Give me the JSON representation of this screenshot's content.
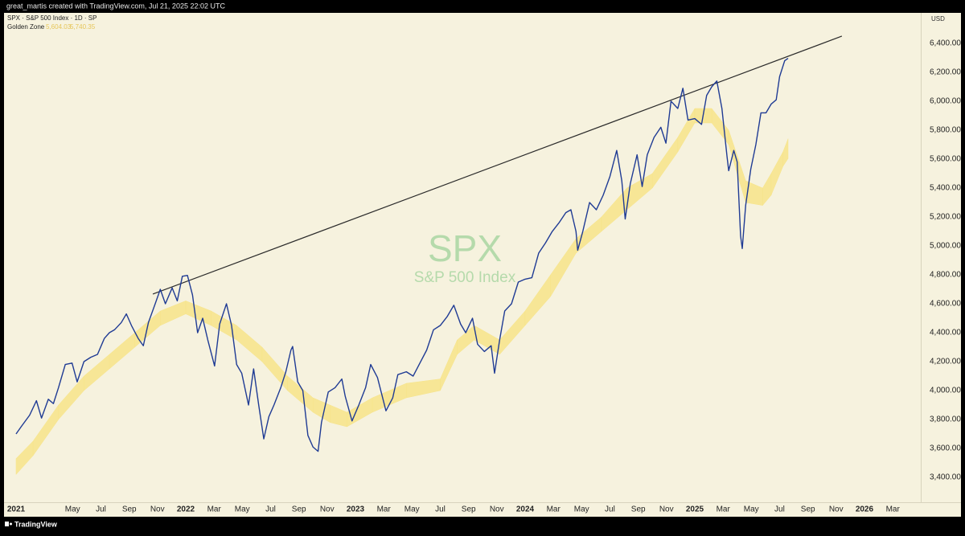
{
  "header": "great_martis created with TradingView.com, Jul 21, 2025 22:02 UTC",
  "footer": "TradingView",
  "chart_data": {
    "type": "line",
    "currency": "USD",
    "watermark": {
      "symbol": "SPX",
      "description": "S&P 500 Index"
    },
    "xlim": [
      2020.929,
      2026.332
    ],
    "ylim": [
      3228,
      6611
    ],
    "xticks": [
      2021,
      {
        "value": 2021.333,
        "label": "May"
      },
      {
        "value": 2021.5,
        "label": "Jul"
      },
      {
        "value": 2021.667,
        "label": "Sep"
      },
      {
        "value": 2021.833,
        "label": "Nov"
      },
      2022,
      {
        "value": 2022.167,
        "label": "Mar"
      },
      {
        "value": 2022.333,
        "label": "May"
      },
      {
        "value": 2022.5,
        "label": "Jul"
      },
      {
        "value": 2022.667,
        "label": "Sep"
      },
      {
        "value": 2022.833,
        "label": "Nov"
      },
      2023,
      {
        "value": 2023.167,
        "label": "Mar"
      },
      {
        "value": 2023.333,
        "label": "May"
      },
      {
        "value": 2023.5,
        "label": "Jul"
      },
      {
        "value": 2023.667,
        "label": "Sep"
      },
      {
        "value": 2023.833,
        "label": "Nov"
      },
      2024,
      {
        "value": 2024.167,
        "label": "Mar"
      },
      {
        "value": 2024.333,
        "label": "May"
      },
      {
        "value": 2024.5,
        "label": "Jul"
      },
      {
        "value": 2024.667,
        "label": "Sep"
      },
      {
        "value": 2024.833,
        "label": "Nov"
      },
      2025,
      {
        "value": 2025.167,
        "label": "Mar"
      },
      {
        "value": 2025.333,
        "label": "May"
      },
      {
        "value": 2025.5,
        "label": "Jul"
      },
      {
        "value": 2025.667,
        "label": "Sep"
      },
      {
        "value": 2025.833,
        "label": "Nov"
      },
      2026,
      {
        "value": 2026.167,
        "label": "Mar"
      }
    ],
    "yticks": [
      {
        "value": 3400,
        "label": "3,400.00"
      },
      {
        "value": 3600,
        "label": "3,600.00"
      },
      {
        "value": 3800,
        "label": "3,800.00"
      },
      {
        "value": 4000,
        "label": "4,000.00"
      },
      {
        "value": 4200,
        "label": "4,200.00"
      },
      {
        "value": 4400,
        "label": "4,400.00"
      },
      {
        "value": 4600,
        "label": "4,600.00"
      },
      {
        "value": 4800,
        "label": "4,800.00"
      },
      {
        "value": 5000,
        "label": "5,000.00"
      },
      {
        "value": 5200,
        "label": "5,200.00"
      },
      {
        "value": 5400,
        "label": "5,400.00"
      },
      {
        "value": 5600,
        "label": "5,600.00"
      },
      {
        "value": 5800,
        "label": "5,800.00"
      },
      {
        "value": 6000,
        "label": "6,000.00"
      },
      {
        "value": 6200,
        "label": "6,200.00"
      },
      {
        "value": 6400,
        "label": "6,400.00"
      }
    ],
    "x": [
      2021.0,
      2021.03,
      2021.08,
      2021.12,
      2021.15,
      2021.19,
      2021.22,
      2021.25,
      2021.29,
      2021.33,
      2021.36,
      2021.4,
      2021.44,
      2021.48,
      2021.52,
      2021.55,
      2021.58,
      2021.62,
      2021.65,
      2021.68,
      2021.72,
      2021.75,
      2021.78,
      2021.82,
      2021.85,
      2021.88,
      2021.92,
      2021.95,
      2021.98,
      2022.01,
      2022.04,
      2022.07,
      2022.1,
      2022.13,
      2022.17,
      2022.2,
      2022.24,
      2022.27,
      2022.3,
      2022.33,
      2022.37,
      2022.4,
      2022.43,
      2022.46,
      2022.49,
      2022.52,
      2022.56,
      2022.59,
      2022.62,
      2022.63,
      2022.66,
      2022.69,
      2022.72,
      2022.75,
      2022.78,
      2022.8,
      2022.84,
      2022.88,
      2022.92,
      2022.94,
      2022.98,
      2023.02,
      2023.06,
      2023.09,
      2023.13,
      2023.18,
      2023.22,
      2023.25,
      2023.3,
      2023.34,
      2023.38,
      2023.42,
      2023.46,
      2023.5,
      2023.54,
      2023.58,
      2023.62,
      2023.65,
      2023.69,
      2023.72,
      2023.76,
      2023.8,
      2023.82,
      2023.85,
      2023.88,
      2023.92,
      2023.96,
      2024.0,
      2024.04,
      2024.08,
      2024.12,
      2024.16,
      2024.2,
      2024.24,
      2024.27,
      2024.3,
      2024.31,
      2024.34,
      2024.38,
      2024.42,
      2024.46,
      2024.5,
      2024.54,
      2024.57,
      2024.59,
      2024.62,
      2024.66,
      2024.69,
      2024.72,
      2024.76,
      2024.8,
      2024.83,
      2024.86,
      2024.9,
      2024.93,
      2024.96,
      2025.0,
      2025.04,
      2025.07,
      2025.1,
      2025.13,
      2025.16,
      2025.19,
      2025.2,
      2025.23,
      2025.25,
      2025.27,
      2025.28,
      2025.3,
      2025.33,
      2025.36,
      2025.39,
      2025.42,
      2025.45,
      2025.48,
      2025.5,
      2025.53,
      2025.55
    ],
    "series": [
      {
        "name": "SPX · S&P 500 Index · 1D · SP",
        "color": "#1f3b94",
        "values": [
          3700,
          3750,
          3830,
          3930,
          3810,
          3940,
          3910,
          4020,
          4180,
          4190,
          4060,
          4200,
          4230,
          4250,
          4360,
          4400,
          4420,
          4470,
          4530,
          4450,
          4360,
          4310,
          4470,
          4600,
          4700,
          4600,
          4710,
          4620,
          4790,
          4796,
          4660,
          4400,
          4500,
          4350,
          4170,
          4460,
          4600,
          4450,
          4180,
          4120,
          3900,
          4150,
          3900,
          3666,
          3820,
          3900,
          4020,
          4130,
          4280,
          4305,
          4060,
          4000,
          3690,
          3610,
          3580,
          3780,
          3990,
          4020,
          4080,
          3960,
          3790,
          3900,
          4020,
          4180,
          4090,
          3860,
          3950,
          4110,
          4130,
          4100,
          4190,
          4280,
          4420,
          4450,
          4510,
          4590,
          4460,
          4400,
          4500,
          4320,
          4270,
          4310,
          4120,
          4350,
          4550,
          4600,
          4750,
          4770,
          4780,
          4950,
          5020,
          5100,
          5160,
          5230,
          5250,
          5100,
          4970,
          5100,
          5300,
          5250,
          5350,
          5480,
          5660,
          5450,
          5186,
          5430,
          5630,
          5410,
          5630,
          5750,
          5820,
          5710,
          6000,
          5950,
          6090,
          5870,
          5880,
          5840,
          6040,
          6100,
          6140,
          5950,
          5620,
          5520,
          5660,
          5580,
          5070,
          4982,
          5280,
          5530,
          5700,
          5920,
          5920,
          5980,
          6010,
          6170,
          6280,
          6297
        ]
      }
    ],
    "band": {
      "name": "Golden Zone",
      "color": "#f7e48a",
      "value_labels": [
        "5,604.03",
        "5,740.35"
      ],
      "x": [
        2021.0,
        2021.1,
        2021.25,
        2021.4,
        2021.55,
        2021.7,
        2021.85,
        2022.0,
        2022.15,
        2022.3,
        2022.45,
        2022.6,
        2022.75,
        2022.85,
        2022.95,
        2023.1,
        2023.3,
        2023.5,
        2023.6,
        2023.7,
        2023.85,
        2024.0,
        2024.15,
        2024.3,
        2024.45,
        2024.6,
        2024.75,
        2024.9,
        2025.0,
        2025.1,
        2025.2,
        2025.3,
        2025.4,
        2025.45,
        2025.52,
        2025.55
      ],
      "lower": [
        3420,
        3550,
        3800,
        4000,
        4150,
        4300,
        4450,
        4530,
        4450,
        4350,
        4200,
        4000,
        3850,
        3780,
        3750,
        3850,
        3950,
        4000,
        4250,
        4350,
        4250,
        4450,
        4650,
        4950,
        5100,
        5250,
        5400,
        5650,
        5850,
        5850,
        5700,
        5300,
        5280,
        5350,
        5550,
        5604.03
      ],
      "upper": [
        3530,
        3650,
        3900,
        4100,
        4250,
        4400,
        4550,
        4620,
        4550,
        4450,
        4300,
        4100,
        3950,
        3900,
        3850,
        3950,
        4050,
        4080,
        4350,
        4450,
        4350,
        4550,
        4800,
        5050,
        5200,
        5400,
        5500,
        5750,
        5950,
        5950,
        5800,
        5450,
        5400,
        5500,
        5650,
        5740.35
      ]
    },
    "trendline": {
      "x": [
        2021.806,
        2025.867
      ],
      "y": [
        4667,
        6450
      ],
      "color": "#2b2b2b"
    }
  }
}
